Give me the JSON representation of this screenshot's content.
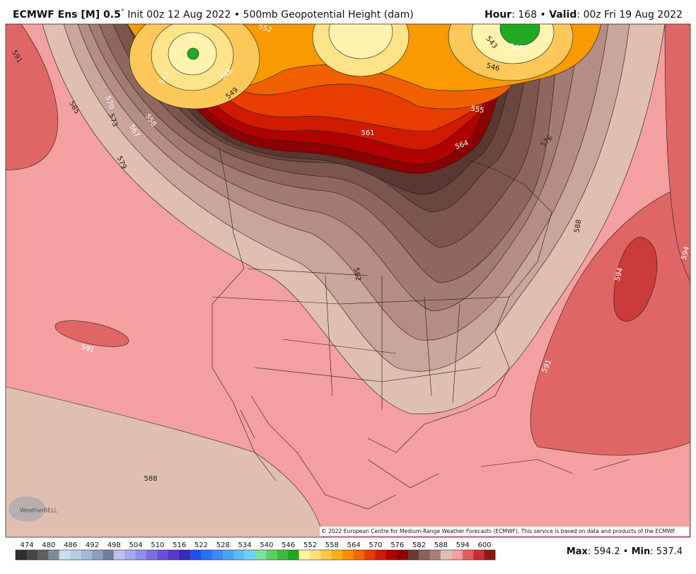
{
  "header": {
    "title_bold": "ECMWF Ens [M] 0.5",
    "degree": "°",
    "title_rest": " Init 00z 12 Aug 2022 • 500mb Geopotential Height (dam)",
    "hour_label": "Hour",
    "hour_value": ": 168 • ",
    "valid_label": "Valid",
    "valid_value": ": 00z Fri 19 Aug 2022"
  },
  "map": {
    "contour_labels": [
      "591",
      "585",
      "570",
      "573",
      "567",
      "558",
      "579",
      "552",
      "546",
      "549",
      "543",
      "543",
      "540",
      "546",
      "555",
      "561",
      "564",
      "576",
      "588",
      "594",
      "594",
      "582",
      "591",
      "591",
      "588"
    ],
    "copyright": "© 2022 European Centre for Medium-Range Weather Forecasts (ECMWF). This service is based on data and products of the ECMWF.",
    "watermark": "WeatherBELL"
  },
  "colorbar": {
    "labels": [
      "474",
      "480",
      "486",
      "492",
      "498",
      "504",
      "510",
      "516",
      "522",
      "528",
      "534",
      "540",
      "546",
      "552",
      "558",
      "564",
      "570",
      "576",
      "582",
      "588",
      "594",
      "600"
    ],
    "colors": [
      "#2e2e2e",
      "#474747",
      "#5f5f5f",
      "#7d8c99",
      "#c8def2",
      "#b5cfe9",
      "#a4bbd6",
      "#8d9fbf",
      "#6f7fa0",
      "#c0c0f0",
      "#a8a8f0",
      "#9090e8",
      "#7a6fe0",
      "#6a50d8",
      "#5838c8",
      "#3a28b8",
      "#2050e8",
      "#2a6ef0",
      "#3a8cf2",
      "#4aa4f4",
      "#5cbcf6",
      "#6fd0f6",
      "#7fe0a0",
      "#5cd060",
      "#3cbe3c",
      "#22a822",
      "#fff5a0",
      "#fde27a",
      "#fcc84a",
      "#fbad20",
      "#f88f00",
      "#f06800",
      "#e83c00",
      "#d01a00",
      "#b00000",
      "#8b0000",
      "#6b3a30",
      "#8a625a",
      "#a88078",
      "#dcc0b8",
      "#f4a0a0",
      "#e06060",
      "#c83030",
      "#8b1a10"
    ]
  },
  "footer": {
    "max_label": "Max",
    "max_value": ": 594.2 • ",
    "min_label": "Min",
    "min_value": ": 537.4"
  }
}
